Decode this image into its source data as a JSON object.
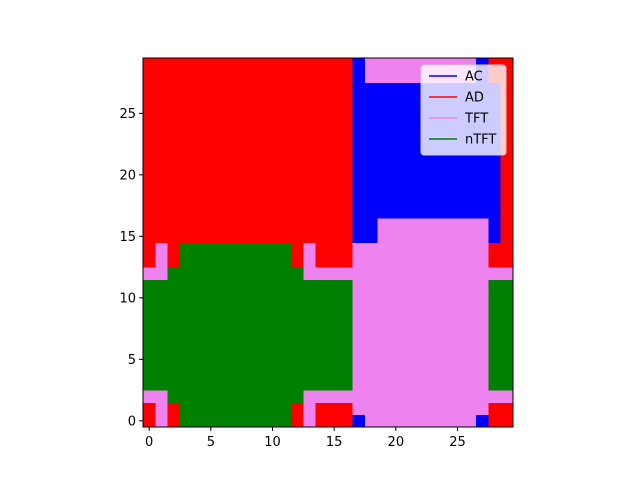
{
  "chart_data": {
    "type": "heatmap",
    "title": "",
    "xlabel": "",
    "ylabel": "",
    "xlim": [
      -0.5,
      29.5
    ],
    "ylim": [
      -0.5,
      29.5
    ],
    "origin": "lower",
    "grid": false,
    "legend_position": "upper right",
    "xticks": [
      0,
      5,
      10,
      15,
      20,
      25
    ],
    "yticks": [
      0,
      5,
      10,
      15,
      20,
      25
    ],
    "xtick_labels": [
      "0",
      "5",
      "10",
      "15",
      "20",
      "25"
    ],
    "ytick_labels": [
      "0",
      "5",
      "10",
      "15",
      "20",
      "25"
    ],
    "legend": [
      {
        "label": "AC",
        "color": "#0000ff"
      },
      {
        "label": "AD",
        "color": "#ff0000"
      },
      {
        "label": "TFT",
        "color": "#ee82ee"
      },
      {
        "label": "nTFT",
        "color": "#008000"
      }
    ],
    "palette": {
      "B": "#0000ff",
      "R": "#ff0000",
      "V": "#ee82ee",
      "G": "#008000"
    },
    "grid_rows_bottom_to_top": [
      "RVRGGGGGGGGGRVRRRBVVVVVVVVVBRR",
      "RVRGGGGGGGGGRVRRRVVVVVVVVVVVRR",
      "VVGGGGGGGGGGGVVVVVVVVVVVVVVVVV",
      "GGGGGGGGGGGGGGGGGVVVVVVVVVVVGG",
      "GGGGGGGGGGGGGGGGGVVVVVVVVVVVGG",
      "GGGGGGGGGGGGGGGGGVVVVVVVVVVVGG",
      "GGGGGGGGGGGGGGGGGVVVVVVVVVVVGG",
      "GGGGGGGGGGGGGGGGGVVVVVVVVVVVGG",
      "GGGGGGGGGGGGGGGGGVVVVVVVVVVVGG",
      "GGGGGGGGGGGGGGGGGVVVVVVVVVVVGG",
      "GGGGGGGGGGGGGGGGGVVVVVVVVVVVGG",
      "GGGGGGGGGGGGGGGGGVVVVVVVVVVVGG",
      "VVGGGGGGGGGGGVVVVVVVVVVVVVVVVV",
      "RVRGGGGGGGGGRVRRRVVVVVVVVVVVRR",
      "RVRGGGGGGGGGRVRRRVVVVVVVVVVVRR",
      "RRRRRRRRRRRRRRRRRBBVVVVVVVVVBR",
      "RRRRRRRRRRRRRRRRRBBVVVVVVVVVBR",
      "RRRRRRRRRRRRRRRRRBBBBBBBBBBBBR",
      "RRRRRRRRRRRRRRRRRBBBBBBBBBBBBR",
      "RRRRRRRRRRRRRRRRRBBBBBBBBBBBBR",
      "RRRRRRRRRRRRRRRRRBBBBBBBBBBBBR",
      "RRRRRRRRRRRRRRRRRBBBBBBBBBBBBR",
      "RRRRRRRRRRRRRRRRRBBBBBBBBBBBBR",
      "RRRRRRRRRRRRRRRRRBBBBBBBBBBBBR",
      "RRRRRRRRRRRRRRRRRBBBBBBBBBBBBR",
      "RRRRRRRRRRRRRRRRRBBBBBBBBBBBBR",
      "RRRRRRRRRRRRRRRRRBBBBBBBBBBBBR",
      "RRRRRRRRRRRRRRRRRBBBBBBBBBBBBR",
      "RRRRRRRRRRRRRRRRRBVVVVVVVVVBRR",
      "RRRRRRRRRRRRRRRRRBVVVVVVVVVBRR"
    ]
  }
}
